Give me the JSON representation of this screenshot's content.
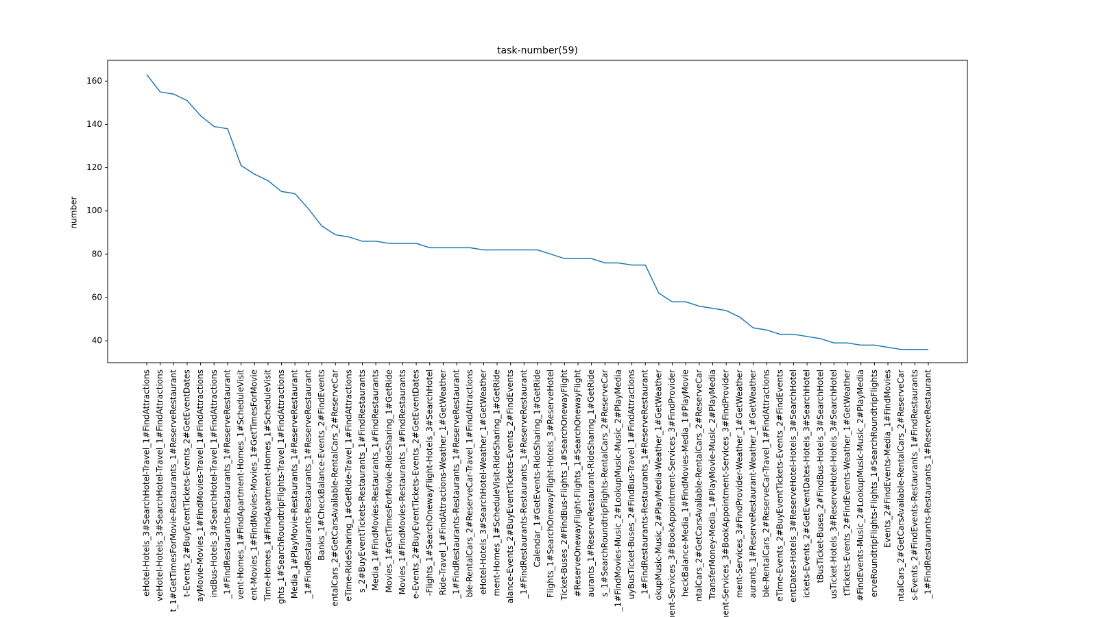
{
  "chart_data": {
    "type": "line",
    "title": "task-number(59)",
    "y_label": "number",
    "categories": [
      "eHotel-Hotels_3#SearchHotel-Travel_1#FindAttractions",
      "veHotel-Hotels_3#SearchHotel-Travel_1#FindAttractions",
      "t_1#GetTimesForMovie-Restaurants_1#ReserveRestaurant",
      "t-Events_2#BuyEventTickets-Events_2#GetEventDates",
      "ayMovie-Movies_1#FindMovies-Travel_1#FindAttractions",
      "indBus-Hotels_3#SearchHotel-Travel_1#FindAttractions",
      "_1#FindRestaurants-Restaurants_1#ReserveRestaurant",
      "vent-Homes_1#FindApartment-Homes_1#ScheduleVisit",
      "ent-Movies_1#FindMovies-Movies_1#GetTimesForMovie",
      "Time-Homes_1#FindApartment-Homes_1#ScheduleVisit",
      "ghts_1#SearchRoundtripFlights-Travel_1#FindAttractions",
      "Media_1#PlayMovie-Restaurants_1#ReserveRestaurant",
      "_1#FindRestaurants-Restaurants_1#ReserveRestaurant",
      "Banks_1#CheckBalance-Events_2#FindEvents",
      "entalCars_2#GetCarsAvailable-RentalCars_2#ReserveCar",
      "eTime-RideSharing_1#GetRide-Travel_1#FindAttractions",
      "s_2#BuyEventTickets-Restaurants_1#FindRestaurants",
      "Media_1#FindMovies-Restaurants_1#FindRestaurants",
      "Movies_1#GetTimesForMovie-RideSharing_1#GetRide",
      "Movies_1#FindMovies-Restaurants_1#FindRestaurants",
      "e-Events_2#BuyEventTickets-Events_2#GetEventDates",
      "-Flights_1#SearchOnewayFlight-Hotels_3#SearchHotel",
      "Ride-Travel_1#FindAttractions-Weather_1#GetWeather",
      "_1#FindRestaurants-Restaurants_1#ReserveRestaurant",
      "ble-RentalCars_2#ReserveCar-Travel_1#FindAttractions",
      "eHotel-Hotels_3#SearchHotel-Weather_1#GetWeather",
      "ment-Homes_1#ScheduleVisit-RideSharing_1#GetRide",
      "alance-Events_2#BuyEventTickets-Events_2#FindEvents",
      "_1#FindRestaurants-Restaurants_1#ReserveRestaurant",
      "Calendar_1#GetEvents-RideSharing_1#GetRide",
      "Flights_1#SearchOnewayFlight-Hotels_3#ReserveHotel",
      "Ticket-Buses_2#FindBus-Flights_1#SearchOnewayFlight",
      "#ReserveOnewayFlight-Flights_1#SearchOnewayFlight",
      "aurants_1#ReserveRestaurant-RideSharing_1#GetRide",
      "s_1#SearchRoundtripFlights-RentalCars_2#ReserveCar",
      "_1#FindMovies-Music_2#LookupMusic-Music_2#PlayMedia",
      "uyBusTicket-Buses_2#FindBus-Travel_1#FindAttractions",
      "_1#FindRestaurants-Restaurants_1#ReserveRestaurant",
      "okupMusic-Music_2#PlayMedia-Weather_1#GetWeather",
      "ment-Services_3#BookAppointment-Services_3#FindProvider",
      "heckBalance-Media_1#FindMovies-Media_1#PlayMovie",
      "ntalCars_2#GetCarsAvailable-RentalCars_2#ReserveCar",
      "TransferMoney-Media_1#PlayMovie-Music_2#PlayMedia",
      "ment-Services_3#BookAppointment-Services_3#FindProvider",
      "ment-Services_3#FindProvider-Weather_1#GetWeather",
      "aurants_1#ReserveRestaurant-Weather_1#GetWeather",
      "ble-RentalCars_2#ReserveCar-Travel_1#FindAttractions",
      "eTime-Events_2#BuyEventTickets-Events_2#FindEvents",
      "entDates-Hotels_3#ReserveHotel-Hotels_3#SearchHotel",
      "ickets-Events_2#GetEventDates-Hotels_3#SearchHotel",
      "tBusTicket-Buses_2#FindBus-Hotels_3#SearchHotel",
      "usTicket-Hotels_3#ReserveHotel-Hotels_3#SearchHotel",
      "tTickets-Events_2#FindEvents-Weather_1#GetWeather",
      "#FindEvents-Music_2#LookupMusic-Music_2#PlayMedia",
      "erveRoundtripFlights-Flights_1#SearchRoundtripFlights",
      "Events_2#FindEvents-Media_1#FindMovies",
      "ntalCars_2#GetCarsAvailable-RentalCars_2#ReserveCar",
      "s-Events_2#FindEvents-Restaurants_1#FindRestaurants",
      "_1#FindRestaurants-Restaurants_1#ReserveRestaurant"
    ],
    "series": [
      {
        "color": "#1f77b4",
        "values": [
          163,
          155,
          154,
          151,
          144,
          139,
          138,
          121,
          117,
          114,
          109,
          108,
          101,
          93,
          89,
          88,
          86,
          86,
          85,
          85,
          85,
          83,
          83,
          83,
          83,
          82,
          82,
          82,
          82,
          82,
          80,
          78,
          78,
          78,
          76,
          76,
          75,
          75,
          62,
          58,
          58,
          56,
          55,
          54,
          51,
          46,
          45,
          43,
          43,
          42,
          41,
          39,
          39,
          38,
          38,
          37,
          36,
          36,
          36
        ]
      }
    ],
    "ylim": [
      29.9,
      169.6
    ],
    "yticks": [
      40,
      60,
      80,
      100,
      120,
      140,
      160
    ]
  }
}
